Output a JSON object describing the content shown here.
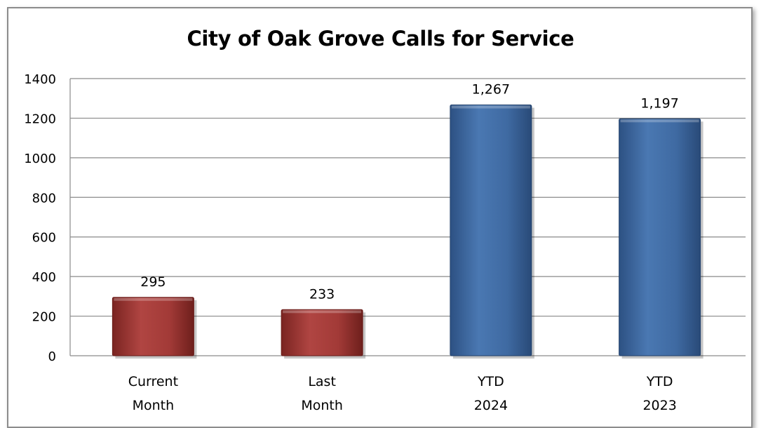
{
  "chart_data": {
    "type": "bar",
    "title": "City of Oak Grove Calls for Service",
    "categories": [
      [
        "Current",
        "Month"
      ],
      [
        "Last",
        "Month"
      ],
      [
        "YTD",
        "2024"
      ],
      [
        "YTD",
        "2023"
      ]
    ],
    "values": [
      295,
      233,
      1267,
      1197
    ],
    "data_labels": [
      "295",
      "233",
      "1,267",
      "1,197"
    ],
    "bar_colors": [
      "#9b3330",
      "#9b3330",
      "#3f6aa2",
      "#3f6aa2"
    ],
    "ylim": [
      0,
      1400
    ],
    "y_ticks": [
      0,
      200,
      400,
      600,
      800,
      1000,
      1200,
      1400
    ],
    "xlabel": "",
    "ylabel": "",
    "grid": true,
    "legend": "none"
  }
}
